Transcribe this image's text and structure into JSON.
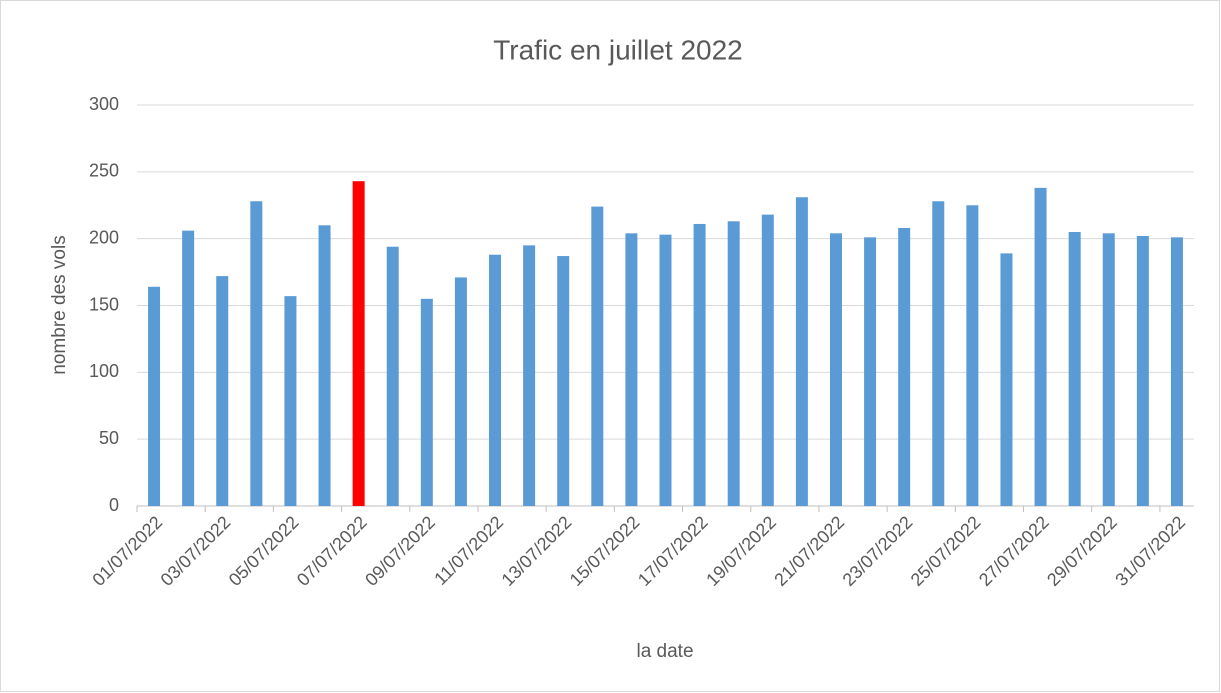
{
  "chart_data": {
    "type": "bar",
    "title": "Trafic en juillet 2022",
    "x_label": "la date",
    "y_label": "nombre des vols",
    "categories": [
      "01/07/2022",
      null,
      "03/07/2022",
      null,
      "05/07/2022",
      null,
      "07/07/2022",
      null,
      "09/07/2022",
      null,
      "11/07/2022",
      null,
      "13/07/2022",
      null,
      "15/07/2022",
      null,
      "17/07/2022",
      null,
      "19/07/2022",
      null,
      "21/07/2022",
      null,
      "23/07/2022",
      null,
      "25/07/2022",
      null,
      "27/07/2022",
      null,
      "29/07/2022",
      null,
      "31/07/2022"
    ],
    "values": [
      164,
      206,
      172,
      228,
      157,
      210,
      243,
      194,
      155,
      171,
      188,
      195,
      187,
      224,
      204,
      203,
      211,
      213,
      218,
      231,
      204,
      201,
      208,
      228,
      225,
      189,
      238,
      205,
      204,
      202,
      201
    ],
    "colors": [
      "#5b9bd5",
      "#5b9bd5",
      "#5b9bd5",
      "#5b9bd5",
      "#5b9bd5",
      "#5b9bd5",
      "#ff0000",
      "#5b9bd5",
      "#5b9bd5",
      "#5b9bd5",
      "#5b9bd5",
      "#5b9bd5",
      "#5b9bd5",
      "#5b9bd5",
      "#5b9bd5",
      "#5b9bd5",
      "#5b9bd5",
      "#5b9bd5",
      "#5b9bd5",
      "#5b9bd5",
      "#5b9bd5",
      "#5b9bd5",
      "#5b9bd5",
      "#5b9bd5",
      "#5b9bd5",
      "#5b9bd5",
      "#5b9bd5",
      "#5b9bd5",
      "#5b9bd5",
      "#5b9bd5",
      "#5b9bd5"
    ],
    "ylim": [
      0,
      300
    ],
    "yticks": [
      0,
      50,
      100,
      150,
      200,
      250,
      300
    ],
    "grid": true
  }
}
